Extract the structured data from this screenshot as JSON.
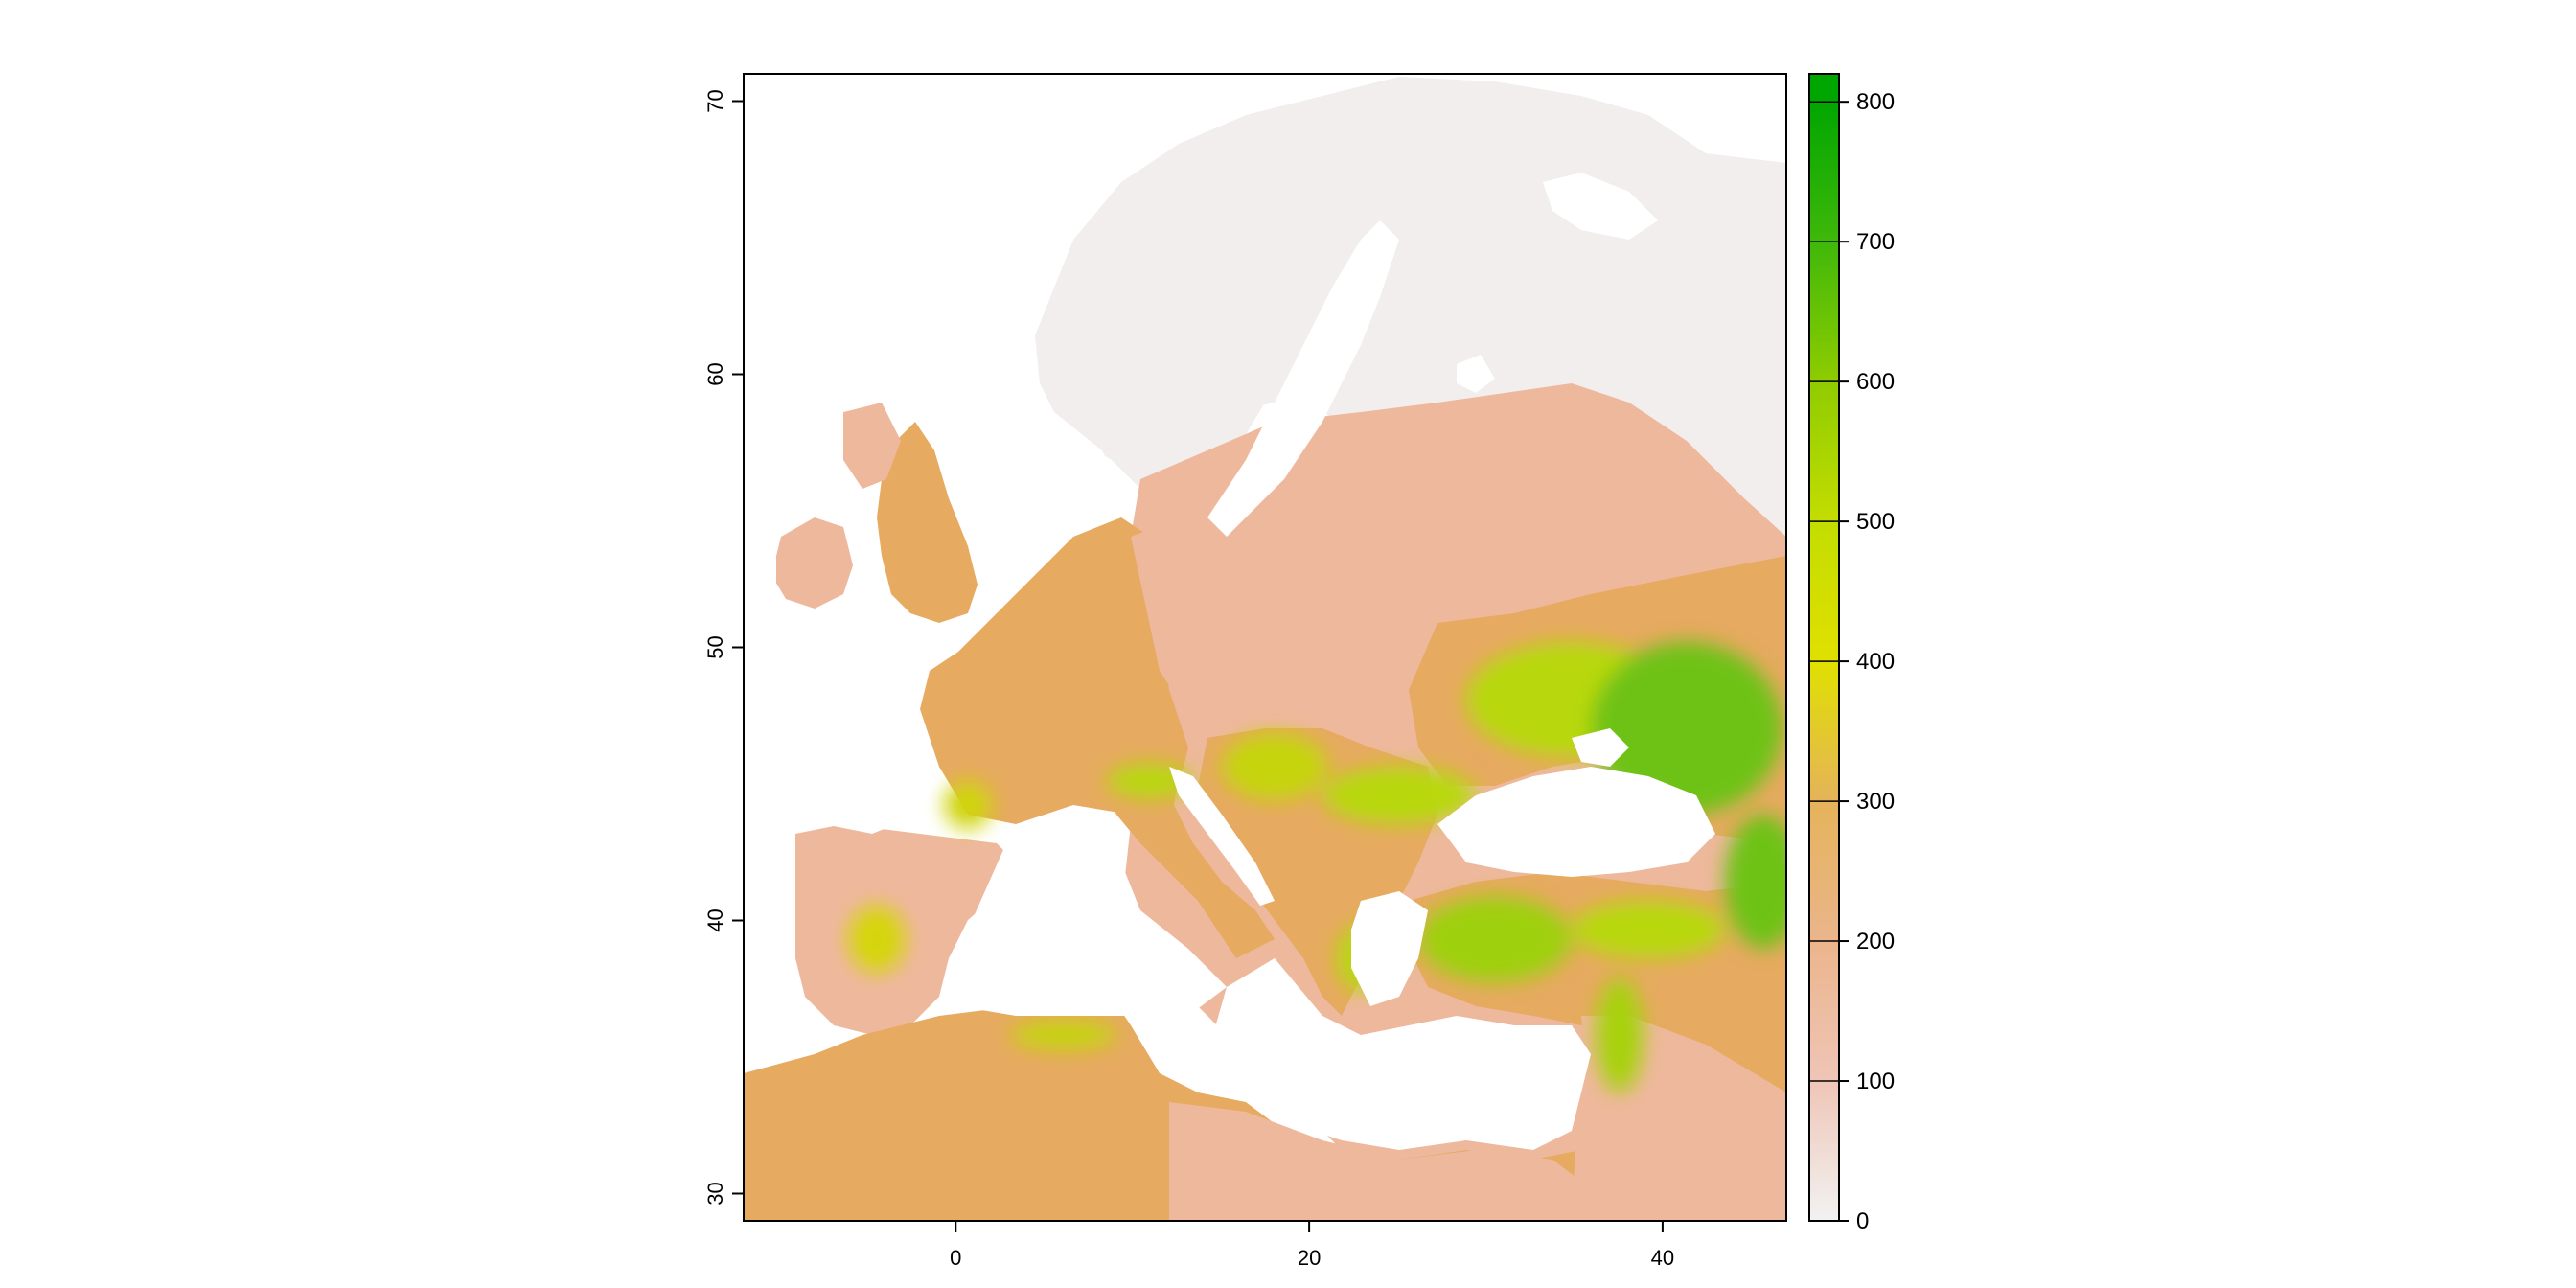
{
  "map": {
    "x_axis": {
      "ticks": [
        0,
        20,
        40
      ],
      "range": [
        -12,
        47
      ]
    },
    "y_axis": {
      "ticks": [
        30,
        40,
        50,
        60,
        70
      ],
      "range": [
        29,
        71
      ]
    },
    "colors": {
      "sea": "#ffffff",
      "tundra": "#f2eeee",
      "low": "#eeb89c",
      "mid": "#e6aa60",
      "high": "#b8d80a",
      "peak": "#2aa815",
      "frame": "#000000"
    }
  },
  "legend": {
    "ticks": [
      0,
      100,
      200,
      300,
      400,
      500,
      600,
      700,
      800
    ],
    "range": [
      0,
      820
    ],
    "gradient_stops": [
      {
        "value": 0,
        "color": "#f2f2f2"
      },
      {
        "value": 100,
        "color": "#efc5b6"
      },
      {
        "value": 200,
        "color": "#ebb58c"
      },
      {
        "value": 300,
        "color": "#e5b35a"
      },
      {
        "value": 400,
        "color": "#e0e000"
      },
      {
        "value": 500,
        "color": "#c3dd00"
      },
      {
        "value": 600,
        "color": "#8fcc00"
      },
      {
        "value": 700,
        "color": "#3fb80a"
      },
      {
        "value": 800,
        "color": "#00a600"
      },
      {
        "value": 820,
        "color": "#00a600"
      }
    ]
  }
}
